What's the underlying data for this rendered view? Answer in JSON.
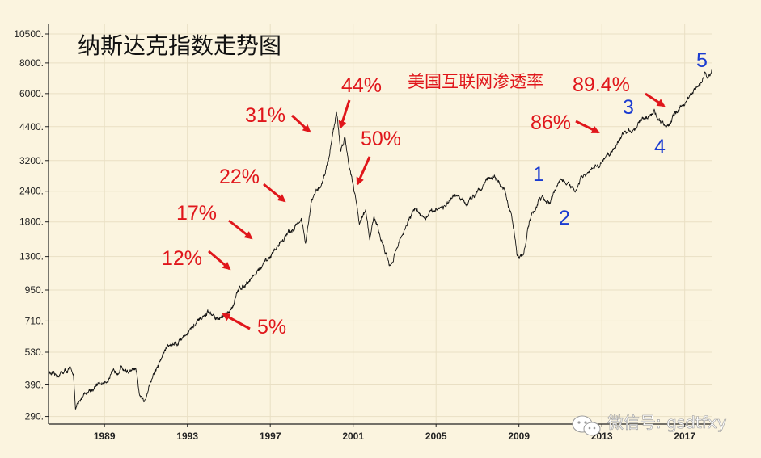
{
  "chart_data": {
    "type": "line",
    "title": "纳斯达克指数走势图",
    "xlabel": "",
    "ylabel": "",
    "y_scale": "log",
    "ylim": [
      270,
      11500
    ],
    "xlim": [
      1986.3,
      2018.3
    ],
    "y_ticks": [
      "10500.",
      "8000.",
      "6000.",
      "4400.",
      "3200.",
      "2400.",
      "1800.",
      "1300.",
      "950.",
      "710.",
      "530.",
      "390.",
      "290."
    ],
    "y_tick_values": [
      10500,
      8000,
      6000,
      4400,
      3200,
      2400,
      1800,
      1300,
      950,
      710,
      530,
      390,
      290
    ],
    "x_ticks": [
      "1989",
      "1993",
      "1997",
      "2001",
      "2005",
      "2009",
      "2013",
      "2017"
    ],
    "x_tick_values": [
      1989,
      1993,
      1997,
      2001,
      2005,
      2009,
      2013,
      2017
    ],
    "grid": true,
    "legend": "none",
    "series": [
      {
        "points": [
          [
            1986.3,
            440
          ],
          [
            1986.6,
            420
          ],
          [
            1987.0,
            440
          ],
          [
            1987.3,
            450
          ],
          [
            1987.5,
            440
          ],
          [
            1987.6,
            310
          ],
          [
            1987.8,
            330
          ],
          [
            1988.0,
            360
          ],
          [
            1988.5,
            380
          ],
          [
            1989.0,
            400
          ],
          [
            1989.5,
            440
          ],
          [
            1989.8,
            460
          ],
          [
            1990.2,
            440
          ],
          [
            1990.5,
            450
          ],
          [
            1990.7,
            350
          ],
          [
            1990.9,
            330
          ],
          [
            1991.2,
            400
          ],
          [
            1991.5,
            450
          ],
          [
            1992.0,
            560
          ],
          [
            1992.5,
            580
          ],
          [
            1993.0,
            640
          ],
          [
            1993.5,
            700
          ],
          [
            1994.0,
            770
          ],
          [
            1994.5,
            720
          ],
          [
            1995.0,
            760
          ],
          [
            1995.5,
            960
          ],
          [
            1996.0,
            1050
          ],
          [
            1996.5,
            1150
          ],
          [
            1997.0,
            1300
          ],
          [
            1997.5,
            1500
          ],
          [
            1998.0,
            1650
          ],
          [
            1998.5,
            1850
          ],
          [
            1998.7,
            1450
          ],
          [
            1999.0,
            2200
          ],
          [
            1999.5,
            2600
          ],
          [
            1999.8,
            3200
          ],
          [
            2000.0,
            4100
          ],
          [
            2000.2,
            5050
          ],
          [
            2000.4,
            3500
          ],
          [
            2000.6,
            4000
          ],
          [
            2000.8,
            3100
          ],
          [
            2001.0,
            2600
          ],
          [
            2001.3,
            1800
          ],
          [
            2001.6,
            2000
          ],
          [
            2001.8,
            1500
          ],
          [
            2002.0,
            1900
          ],
          [
            2002.5,
            1400
          ],
          [
            2002.8,
            1150
          ],
          [
            2003.0,
            1350
          ],
          [
            2003.5,
            1700
          ],
          [
            2004.0,
            2050
          ],
          [
            2004.5,
            1850
          ],
          [
            2005.0,
            2050
          ],
          [
            2005.5,
            2100
          ],
          [
            2006.0,
            2300
          ],
          [
            2006.5,
            2100
          ],
          [
            2007.0,
            2450
          ],
          [
            2007.8,
            2800
          ],
          [
            2008.3,
            2400
          ],
          [
            2008.7,
            1800
          ],
          [
            2008.9,
            1350
          ],
          [
            2009.2,
            1300
          ],
          [
            2009.5,
            1800
          ],
          [
            2010.0,
            2250
          ],
          [
            2010.5,
            2150
          ],
          [
            2011.0,
            2700
          ],
          [
            2011.5,
            2500
          ],
          [
            2011.7,
            2350
          ],
          [
            2012.0,
            2700
          ],
          [
            2012.5,
            2900
          ],
          [
            2013.0,
            3150
          ],
          [
            2013.5,
            3500
          ],
          [
            2014.0,
            4100
          ],
          [
            2014.5,
            4300
          ],
          [
            2015.0,
            4700
          ],
          [
            2015.5,
            5050
          ],
          [
            2016.0,
            4450
          ],
          [
            2016.1,
            4350
          ],
          [
            2016.5,
            4900
          ],
          [
            2017.0,
            5500
          ],
          [
            2017.5,
            6200
          ],
          [
            2017.8,
            6700
          ],
          [
            2018.0,
            7300
          ],
          [
            2018.1,
            6900
          ],
          [
            2018.3,
            7500
          ]
        ]
      }
    ],
    "annotations": [
      {
        "text": "44%",
        "kind": "percent"
      },
      {
        "text": "31%",
        "kind": "percent"
      },
      {
        "text": "50%",
        "kind": "percent"
      },
      {
        "text": "22%",
        "kind": "percent"
      },
      {
        "text": "17%",
        "kind": "percent"
      },
      {
        "text": "12%",
        "kind": "percent"
      },
      {
        "text": "5%",
        "kind": "percent"
      },
      {
        "text": "美国互联网渗透率",
        "kind": "label"
      },
      {
        "text": "89.4%",
        "kind": "percent"
      },
      {
        "text": "86%",
        "kind": "percent"
      }
    ],
    "wave_labels": [
      {
        "text": "1",
        "x": 2010.8
      },
      {
        "text": "2",
        "x": 2011.8
      },
      {
        "text": "3",
        "x": 2014.8
      },
      {
        "text": "4",
        "x": 2016.1
      },
      {
        "text": "5",
        "x": 2018.1
      }
    ]
  },
  "watermark": "微信号: gsdtfxy",
  "colors": {
    "background": "#fbf4df",
    "series": "#111111",
    "annotation": "#e0161b",
    "wave": "#1a3bd1",
    "grid": "#e9dfc4"
  },
  "icons": {
    "watermark": "wechat-logo-icon"
  }
}
